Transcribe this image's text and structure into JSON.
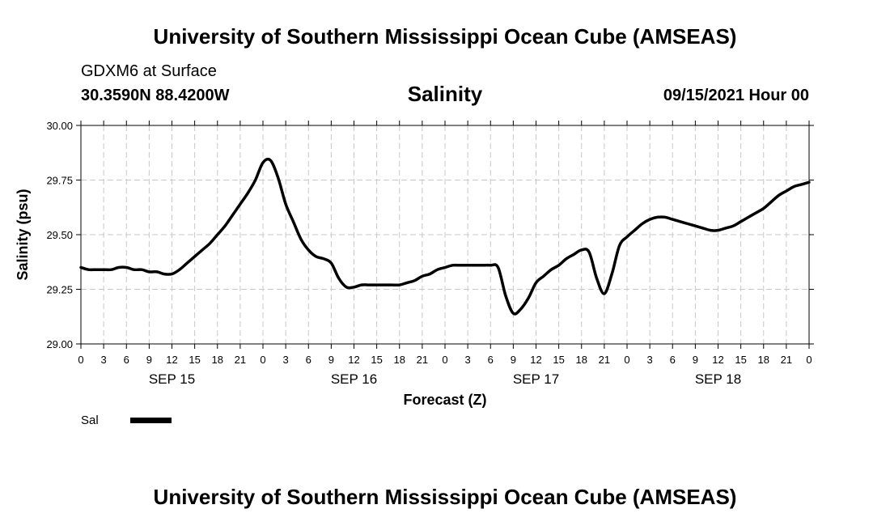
{
  "header": {
    "title": "University of Southern Mississippi Ocean Cube (AMSEAS)",
    "station": "GDXM6 at Surface",
    "coordinates": "30.3590N  88.4200W",
    "chart_title": "Salinity",
    "datetime": "09/15/2021 Hour 00"
  },
  "footer": {
    "title": "University of Southern Mississippi Ocean Cube (AMSEAS)"
  },
  "chart_data": {
    "type": "line",
    "title": "Salinity",
    "xlabel": "Forecast (Z)",
    "ylabel": "Salinity (psu)",
    "xlim": [
      0,
      96
    ],
    "ylim": [
      29.0,
      30.0
    ],
    "grid": true,
    "x_ticks": [
      0,
      3,
      6,
      9,
      12,
      15,
      18,
      21,
      24,
      27,
      30,
      33,
      36,
      39,
      42,
      45,
      48,
      51,
      54,
      57,
      60,
      63,
      66,
      69,
      72,
      75,
      78,
      81,
      84,
      87,
      90,
      93,
      96
    ],
    "x_tick_labels": [
      "0",
      "3",
      "6",
      "9",
      "12",
      "15",
      "18",
      "21",
      "0",
      "3",
      "6",
      "9",
      "12",
      "15",
      "18",
      "21",
      "0",
      "3",
      "6",
      "9",
      "12",
      "15",
      "18",
      "21",
      "0",
      "3",
      "6",
      "9",
      "12",
      "15",
      "18",
      "21",
      "0"
    ],
    "date_labels": [
      {
        "x": 12,
        "label": "SEP 15"
      },
      {
        "x": 36,
        "label": "SEP 16"
      },
      {
        "x": 60,
        "label": "SEP 17"
      },
      {
        "x": 84,
        "label": "SEP 18"
      }
    ],
    "y_ticks": [
      29.0,
      29.25,
      29.5,
      29.75,
      30.0
    ],
    "y_tick_labels": [
      "29.00",
      "29.25",
      "29.50",
      "29.75",
      "30.00"
    ],
    "legend": {
      "label": "Sal",
      "position": "bottom-left"
    },
    "series": [
      {
        "name": "Sal",
        "x": [
          0,
          1,
          2,
          3,
          4,
          5,
          6,
          7,
          8,
          9,
          10,
          11,
          12,
          13,
          14,
          15,
          16,
          17,
          18,
          19,
          20,
          21,
          22,
          23,
          24,
          25,
          26,
          27,
          28,
          29,
          30,
          31,
          32,
          33,
          34,
          35,
          36,
          37,
          38,
          39,
          40,
          41,
          42,
          43,
          44,
          45,
          46,
          47,
          48,
          49,
          50,
          51,
          52,
          53,
          54,
          55,
          56,
          57,
          58,
          59,
          60,
          61,
          62,
          63,
          64,
          65,
          66,
          67,
          68,
          69,
          70,
          71,
          72,
          73,
          74,
          75,
          76,
          77,
          78,
          79,
          80,
          81,
          82,
          83,
          84,
          85,
          86,
          87,
          88,
          89,
          90,
          91,
          92,
          93,
          94,
          95,
          96
        ],
        "values": [
          29.35,
          29.34,
          29.34,
          29.34,
          29.34,
          29.35,
          29.35,
          29.34,
          29.34,
          29.33,
          29.33,
          29.32,
          29.32,
          29.34,
          29.37,
          29.4,
          29.43,
          29.46,
          29.5,
          29.54,
          29.59,
          29.64,
          29.69,
          29.75,
          29.83,
          29.84,
          29.76,
          29.64,
          29.56,
          29.48,
          29.43,
          29.4,
          29.39,
          29.37,
          29.3,
          29.26,
          29.26,
          29.27,
          29.27,
          29.27,
          29.27,
          29.27,
          29.27,
          29.28,
          29.29,
          29.31,
          29.32,
          29.34,
          29.35,
          29.36,
          29.36,
          29.36,
          29.36,
          29.36,
          29.36,
          29.35,
          29.22,
          29.14,
          29.16,
          29.21,
          29.28,
          29.31,
          29.34,
          29.36,
          29.39,
          29.41,
          29.43,
          29.42,
          29.3,
          29.23,
          29.32,
          29.45,
          29.49,
          29.52,
          29.55,
          29.57,
          29.58,
          29.58,
          29.57,
          29.56,
          29.55,
          29.54,
          29.53,
          29.52,
          29.52,
          29.53,
          29.54,
          29.56,
          29.58,
          29.6,
          29.62,
          29.65,
          29.68,
          29.7,
          29.72,
          29.73,
          29.74
        ]
      }
    ]
  }
}
